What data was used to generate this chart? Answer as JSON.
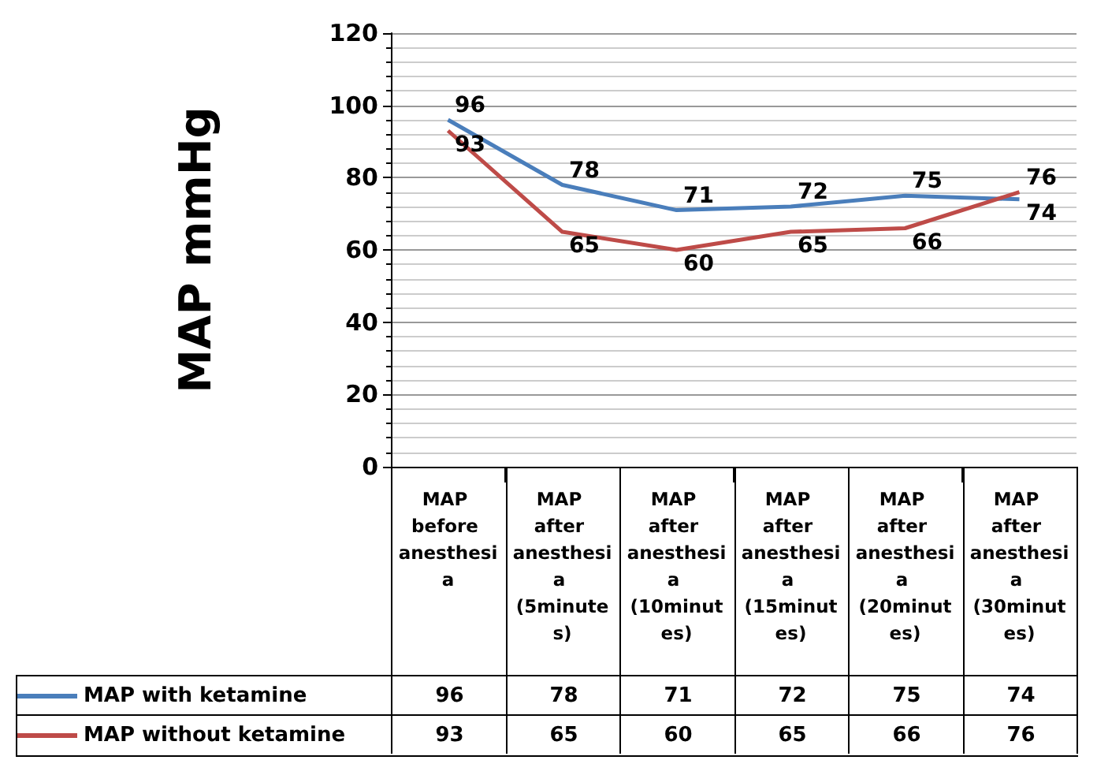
{
  "chart_data": {
    "type": "line",
    "ylabel": "MAP mmHg",
    "categories": [
      "MAP before anesthesia",
      "MAP after anesthesia (5minutes)",
      "MAP after anesthesia (10minutes)",
      "MAP after anesthesia (15minutes)",
      "MAP after anesthesia (20minutes)",
      "MAP after anesthesia (30minutes)"
    ],
    "series": [
      {
        "name": "MAP with ketamine",
        "color": "#4a7ebb",
        "values": [
          96,
          78,
          71,
          72,
          75,
          74
        ],
        "value_labels": [
          "96",
          "78",
          "71",
          "72",
          "75",
          "74"
        ]
      },
      {
        "name": "MAP without ketamine",
        "color": "#be4b48",
        "values": [
          93,
          65,
          60,
          65,
          66,
          76
        ],
        "value_labels": [
          "93",
          "65",
          "60",
          "65",
          "66",
          "76"
        ]
      }
    ],
    "ylim": [
      0,
      120
    ],
    "yticks": [
      0,
      20,
      40,
      60,
      80,
      100,
      120
    ],
    "grid": "y",
    "legend": "bottom",
    "marker": "none",
    "line_style": "solid",
    "data_labels": true
  }
}
